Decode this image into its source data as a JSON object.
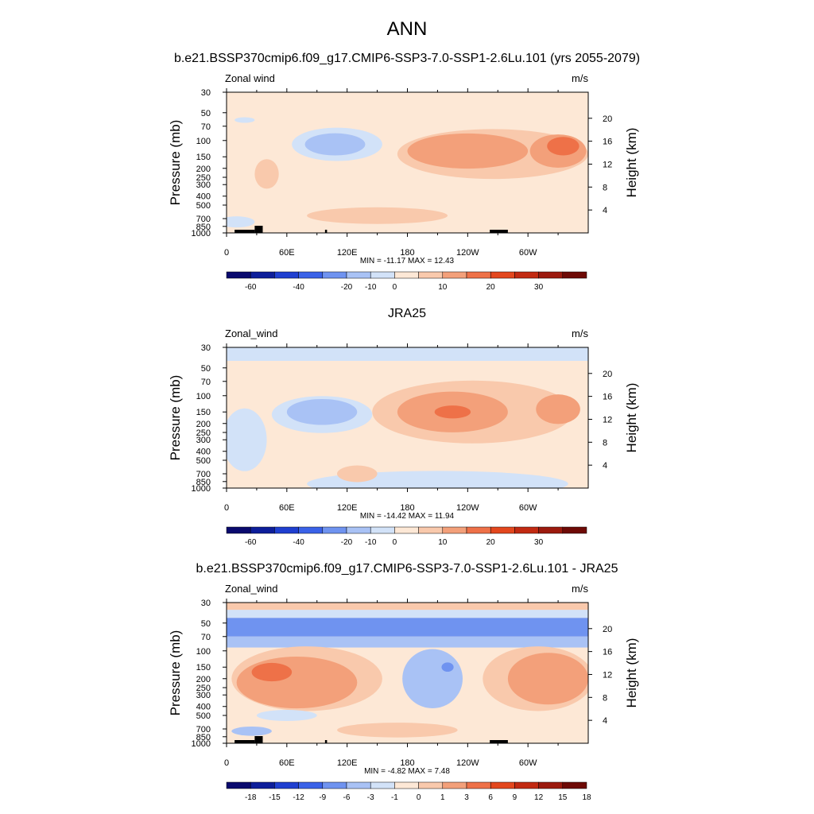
{
  "page": {
    "title": "ANN"
  },
  "palettes": {
    "full": [
      "#0a0a6e",
      "#0d1e9a",
      "#1f3fd0",
      "#3a62e8",
      "#6f93f0",
      "#a9c2f5",
      "#d2e2f8",
      "#fde8d6",
      "#f9c9ac",
      "#f3a07a",
      "#ee7148",
      "#e3471e",
      "#c22a12",
      "#9c1a0e",
      "#6e0a06"
    ],
    "diff": [
      "#0a0a6e",
      "#0d1e9a",
      "#1f3fd0",
      "#3a62e8",
      "#6f93f0",
      "#a9c2f5",
      "#d2e2f8",
      "#fde8d6",
      "#f9c9ac",
      "#f3a07a",
      "#ee7148",
      "#e3471e",
      "#c22a12",
      "#9c1a0e",
      "#6e0a06"
    ]
  },
  "chart_data": [
    {
      "type": "heatmap",
      "title": "b.e21.BSSP370cmip6.f09_g17.CMIP6-SSP3-7.0-SSP1-2.6Lu.101 (yrs 2055-2079)",
      "left_label": "Zonal wind",
      "units": "m/s",
      "ylabel": "Pressure (mb)",
      "ylabel_right": "Height (km)",
      "x_ticks": [
        "0",
        "60E",
        "120E",
        "180",
        "120W",
        "60W"
      ],
      "x_tick_lon": [
        0,
        60,
        120,
        180,
        240,
        300
      ],
      "xlim": [
        0,
        360
      ],
      "y_ticks": [
        "30",
        "50",
        "70",
        "100",
        "150",
        "200",
        "250",
        "300",
        "400",
        "500",
        "700",
        "850",
        "1000"
      ],
      "y_tick_p": [
        30,
        50,
        70,
        100,
        150,
        200,
        250,
        300,
        400,
        500,
        700,
        850,
        1000
      ],
      "ylim": [
        1000,
        30
      ],
      "height_ticks": [
        "20",
        "16",
        "12",
        "8",
        "4"
      ],
      "height_tick_km": [
        20,
        16,
        12,
        8,
        4
      ],
      "stats": "MIN = -11.17  MAX =  12.43",
      "colorbar_labels": [
        "-60",
        "-40",
        "-20",
        "-10",
        "0",
        "10",
        "20",
        "30"
      ],
      "colorbar_label_box": [
        1,
        3,
        5,
        6,
        7,
        9,
        11,
        13
      ],
      "palette": "full",
      "background_level": 7,
      "topography": true,
      "regions": [
        {
          "lon": 110,
          "p": 110,
          "rx": 45,
          "ry": 0.18,
          "level": 6
        },
        {
          "lon": 108,
          "p": 110,
          "rx": 30,
          "ry": 0.12,
          "level": 5
        },
        {
          "lon": 18,
          "p": 60,
          "rx": 10,
          "ry": 0.03,
          "level": 6
        },
        {
          "lon": 40,
          "p": 230,
          "rx": 12,
          "ry": 0.16,
          "level": 8
        },
        {
          "lon": 150,
          "p": 650,
          "rx": 70,
          "ry": 0.09,
          "level": 8
        },
        {
          "lon": 10,
          "p": 760,
          "rx": 18,
          "ry": 0.06,
          "level": 6
        },
        {
          "lon": 265,
          "p": 140,
          "rx": 95,
          "ry": 0.27,
          "level": 8
        },
        {
          "lon": 240,
          "p": 130,
          "rx": 60,
          "ry": 0.19,
          "level": 9
        },
        {
          "lon": 330,
          "p": 130,
          "rx": 28,
          "ry": 0.18,
          "level": 9
        },
        {
          "lon": 335,
          "p": 115,
          "rx": 16,
          "ry": 0.1,
          "level": 10
        }
      ]
    },
    {
      "type": "heatmap",
      "title": "JRA25",
      "left_label": "Zonal_wind",
      "units": "m/s",
      "ylabel": "Pressure (mb)",
      "ylabel_right": "Height (km)",
      "x_ticks": [
        "0",
        "60E",
        "120E",
        "180",
        "120W",
        "60W"
      ],
      "x_tick_lon": [
        0,
        60,
        120,
        180,
        240,
        300
      ],
      "xlim": [
        0,
        360
      ],
      "y_ticks": [
        "30",
        "50",
        "70",
        "100",
        "150",
        "200",
        "250",
        "300",
        "400",
        "500",
        "700",
        "850",
        "1000"
      ],
      "y_tick_p": [
        30,
        50,
        70,
        100,
        150,
        200,
        250,
        300,
        400,
        500,
        700,
        850,
        1000
      ],
      "ylim": [
        1000,
        30
      ],
      "height_ticks": [
        "20",
        "16",
        "12",
        "8",
        "4"
      ],
      "height_tick_km": [
        20,
        16,
        12,
        8,
        4
      ],
      "stats": "MIN = -14.42  MAX =  11.94",
      "colorbar_labels": [
        "-60",
        "-40",
        "-20",
        "-10",
        "0",
        "10",
        "20",
        "30"
      ],
      "colorbar_label_box": [
        1,
        3,
        5,
        6,
        7,
        9,
        11,
        13
      ],
      "palette": "full",
      "background_level": 7,
      "topography": false,
      "bands": [
        {
          "p_top": 30,
          "p_bot": 42,
          "level": 6
        }
      ],
      "regions": [
        {
          "lon": 95,
          "p": 160,
          "rx": 50,
          "ry": 0.2,
          "level": 6
        },
        {
          "lon": 95,
          "p": 150,
          "rx": 35,
          "ry": 0.14,
          "level": 5
        },
        {
          "lon": 18,
          "p": 300,
          "rx": 22,
          "ry": 0.34,
          "level": 6
        },
        {
          "lon": 210,
          "p": 900,
          "rx": 130,
          "ry": 0.14,
          "level": 6
        },
        {
          "lon": 245,
          "p": 150,
          "rx": 100,
          "ry": 0.34,
          "level": 8
        },
        {
          "lon": 225,
          "p": 150,
          "rx": 55,
          "ry": 0.22,
          "level": 9
        },
        {
          "lon": 225,
          "p": 150,
          "rx": 18,
          "ry": 0.07,
          "level": 10
        },
        {
          "lon": 330,
          "p": 140,
          "rx": 22,
          "ry": 0.16,
          "level": 9
        },
        {
          "lon": 130,
          "p": 700,
          "rx": 20,
          "ry": 0.09,
          "level": 8
        }
      ]
    },
    {
      "type": "heatmap",
      "title": "b.e21.BSSP370cmip6.f09_g17.CMIP6-SSP3-7.0-SSP1-2.6Lu.101 - JRA25",
      "left_label": "Zonal_wind",
      "units": "m/s",
      "ylabel": "Pressure (mb)",
      "ylabel_right": "Height (km)",
      "x_ticks": [
        "0",
        "60E",
        "120E",
        "180",
        "120W",
        "60W"
      ],
      "x_tick_lon": [
        0,
        60,
        120,
        180,
        240,
        300
      ],
      "xlim": [
        0,
        360
      ],
      "y_ticks": [
        "30",
        "50",
        "70",
        "100",
        "150",
        "200",
        "250",
        "300",
        "400",
        "500",
        "700",
        "850",
        "1000"
      ],
      "y_tick_p": [
        30,
        50,
        70,
        100,
        150,
        200,
        250,
        300,
        400,
        500,
        700,
        850,
        1000
      ],
      "ylim": [
        1000,
        30
      ],
      "height_ticks": [
        "20",
        "16",
        "12",
        "8",
        "4"
      ],
      "height_tick_km": [
        20,
        16,
        12,
        8,
        4
      ],
      "stats": "MIN =  -4.82  MAX =   7.48",
      "colorbar_labels": [
        "-18",
        "-15",
        "-12",
        "-9",
        "-6",
        "-3",
        "-1",
        "0",
        "1",
        "3",
        "6",
        "9",
        "12",
        "15",
        "18"
      ],
      "colorbar_label_box": [
        1,
        2,
        3,
        4,
        5,
        6,
        7,
        8,
        9,
        10,
        11,
        12,
        13,
        14,
        15
      ],
      "palette": "diff",
      "background_level": 7,
      "topography": true,
      "bands": [
        {
          "p_top": 30,
          "p_bot": 36,
          "level": 8
        },
        {
          "p_top": 36,
          "p_bot": 44,
          "level": 6
        },
        {
          "p_top": 44,
          "p_bot": 70,
          "level": 4
        },
        {
          "p_top": 70,
          "p_bot": 92,
          "level": 5
        }
      ],
      "regions": [
        {
          "lon": 80,
          "p": 200,
          "rx": 75,
          "ry": 0.35,
          "level": 8
        },
        {
          "lon": 70,
          "p": 220,
          "rx": 60,
          "ry": 0.28,
          "level": 9
        },
        {
          "lon": 45,
          "p": 170,
          "rx": 20,
          "ry": 0.1,
          "level": 10
        },
        {
          "lon": 310,
          "p": 200,
          "rx": 55,
          "ry": 0.35,
          "level": 8
        },
        {
          "lon": 320,
          "p": 200,
          "rx": 40,
          "ry": 0.28,
          "level": 9
        },
        {
          "lon": 205,
          "p": 200,
          "rx": 30,
          "ry": 0.32,
          "level": 5
        },
        {
          "lon": 220,
          "p": 150,
          "rx": 6,
          "ry": 0.05,
          "level": 4
        },
        {
          "lon": 60,
          "p": 500,
          "rx": 30,
          "ry": 0.06,
          "level": 6
        },
        {
          "lon": 170,
          "p": 720,
          "rx": 60,
          "ry": 0.08,
          "level": 8
        },
        {
          "lon": 25,
          "p": 740,
          "rx": 20,
          "ry": 0.05,
          "level": 5
        }
      ]
    }
  ]
}
